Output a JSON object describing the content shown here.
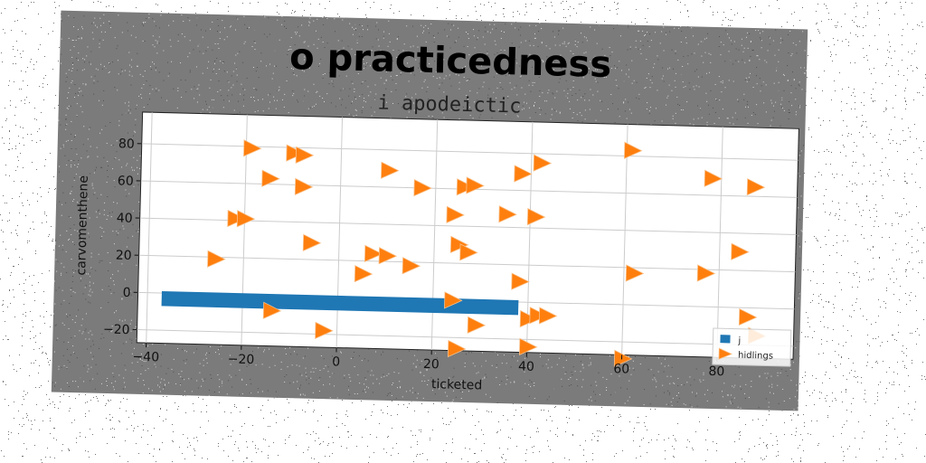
{
  "chart_data": {
    "type": "scatter",
    "title": "o practicedness",
    "subtitle": "i apodeictic",
    "xlabel": "ticketed",
    "ylabel": "carvomenthene",
    "xlim": [
      -42,
      96
    ],
    "ylim": [
      -27,
      97
    ],
    "xticks": [
      -40,
      -20,
      0,
      20,
      40,
      60,
      80
    ],
    "yticks": [
      -20,
      0,
      20,
      40,
      60,
      80
    ],
    "grid": true,
    "legend_position": "lower-right",
    "series": [
      {
        "name": "j",
        "kind": "bar",
        "color": "#1f77b4",
        "x_start": -37,
        "x_end": 38,
        "y_center": -3,
        "half_height": 4
      },
      {
        "name": "hidlings",
        "kind": "scatter",
        "marker": "triangle-right",
        "color": "#ff7f0e",
        "points": [
          [
            -19,
            79
          ],
          [
            -10,
            77
          ],
          [
            -8,
            76
          ],
          [
            -15,
            63
          ],
          [
            -8,
            59
          ],
          [
            -22,
            41
          ],
          [
            -20,
            41
          ],
          [
            -26,
            19
          ],
          [
            -6,
            29
          ],
          [
            -14,
            -8
          ],
          [
            -3,
            -18
          ],
          [
            10,
            69
          ],
          [
            17,
            60
          ],
          [
            5,
            13
          ],
          [
            7,
            24
          ],
          [
            10,
            23
          ],
          [
            15,
            18
          ],
          [
            24,
            46
          ],
          [
            26,
            61
          ],
          [
            28,
            62
          ],
          [
            25,
            30
          ],
          [
            27,
            26
          ],
          [
            24,
            0
          ],
          [
            29,
            -13
          ],
          [
            25,
            -26
          ],
          [
            35,
            47
          ],
          [
            41,
            46
          ],
          [
            38,
            69
          ],
          [
            42,
            75
          ],
          [
            61,
            83
          ],
          [
            38,
            11
          ],
          [
            40,
            -9
          ],
          [
            42,
            -7
          ],
          [
            44,
            -7
          ],
          [
            40,
            -24
          ],
          [
            60,
            -29
          ],
          [
            62,
            17
          ],
          [
            77,
            18
          ],
          [
            78,
            69
          ],
          [
            87,
            65
          ],
          [
            84,
            30
          ],
          [
            86,
            -5
          ],
          [
            88,
            -15
          ]
        ]
      }
    ]
  },
  "colors": {
    "panel_background": "#7b7b7b",
    "plot_background": "#ffffff",
    "grid": "#cccccc",
    "bar": "#1f77b4",
    "marker": "#ff7f0e"
  }
}
